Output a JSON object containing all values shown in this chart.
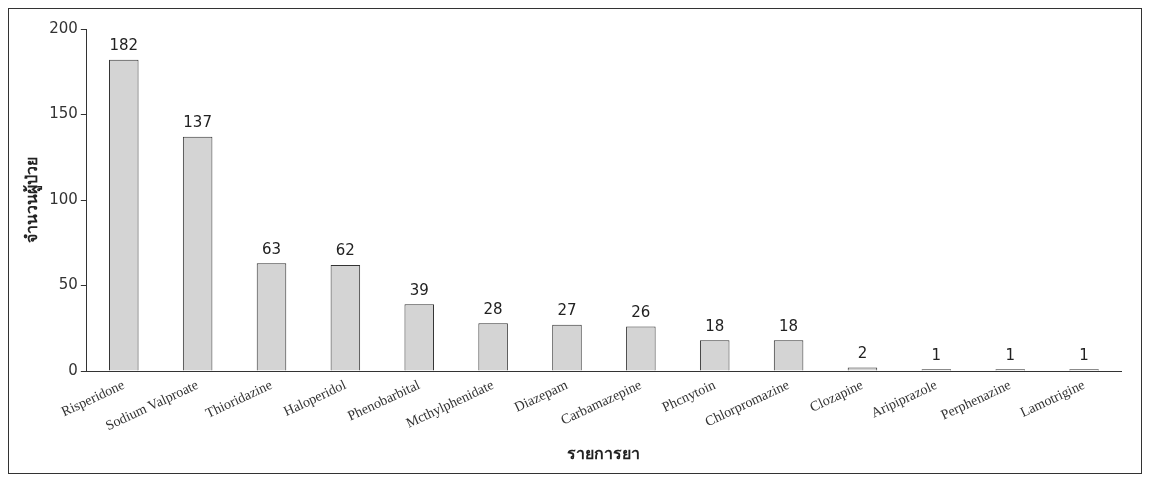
{
  "chart_data": {
    "type": "bar",
    "xlabel": "รายการยา",
    "ylabel": "จำนวนผู้ป่วย",
    "categories": [
      "Risperidone",
      "Sodium Valproate",
      "Thioridazine",
      "Haloperidol",
      "Phenobarbital",
      "Mcthylphenidate",
      "Diazepam",
      "Carbamazepine",
      "Phcnytoin",
      "Chlorpromazine",
      "Clozapine",
      "Aripiprazole",
      "Perphenazine",
      "Lamotrigine"
    ],
    "values": [
      182,
      137,
      63,
      62,
      39,
      28,
      27,
      26,
      18,
      18,
      2,
      1,
      1,
      1
    ],
    "color": "#d4d4d4",
    "ylim": [
      0,
      200
    ],
    "yticks": [
      0,
      50,
      100,
      150,
      200
    ],
    "grid": false,
    "legend": false,
    "data_labels": true
  }
}
